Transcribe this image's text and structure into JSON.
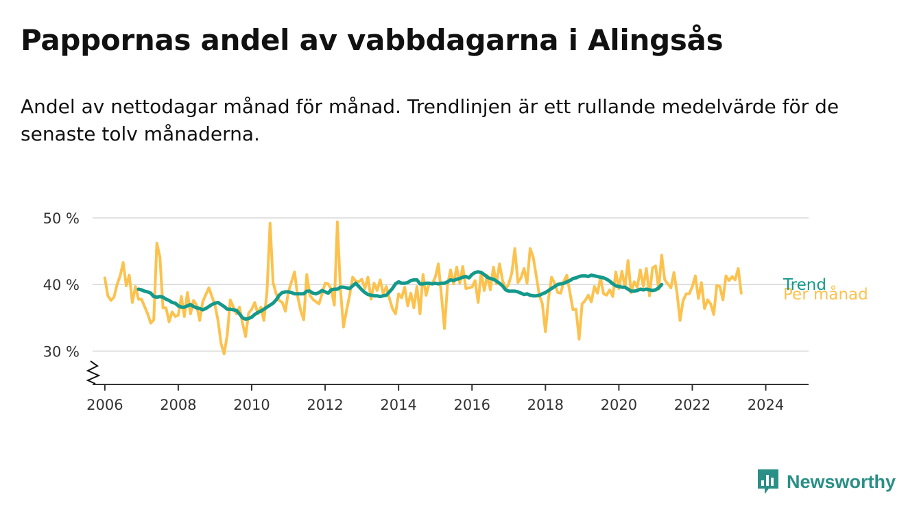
{
  "title": "Pappornas andel av vabbdagarna i Alingsås",
  "subtitle": "Andel av nettodagar månad för månad. Trendlinjen är ett rullande medelvärde för de senaste tolv månaderna.",
  "brand": {
    "name": "Newsworthy",
    "icon": "newsworthy-logo-icon"
  },
  "colors": {
    "monthly": "#fcc24e",
    "trend": "#14998b",
    "grid": "#d9d9d9",
    "axis": "#333333"
  },
  "chart_data": {
    "type": "line",
    "title": "Pappornas andel av vabbdagarna i Alingsås",
    "xlabel": "",
    "ylabel": "",
    "x_ticks": [
      "2006",
      "2008",
      "2010",
      "2012",
      "2014",
      "2016",
      "2018",
      "2020",
      "2022",
      "2024"
    ],
    "y_ticks": [
      "30 %",
      "40 %",
      "50 %"
    ],
    "xlim": [
      "2005-09",
      "2025-03"
    ],
    "ylim": [
      25,
      50
    ],
    "y_axis_broken": true,
    "grid": true,
    "series": [
      {
        "name": "Per månad",
        "x_start": "2006-01",
        "step": "month",
        "values": [
          41,
          38.3,
          37.6,
          38.1,
          40,
          41.3,
          43.3,
          39.8,
          41.4,
          37.3,
          39.7,
          37.8,
          37.8,
          36.7,
          35.6,
          34.2,
          34.7,
          46.2,
          44.1,
          36.5,
          36.5,
          34.4,
          35.9,
          35.2,
          35.4,
          38.2,
          35.2,
          38.8,
          35.6,
          37.6,
          36.9,
          34.6,
          37.4,
          38.5,
          39.5,
          38.2,
          36.9,
          34.6,
          31.1,
          29.6,
          32.4,
          37.7,
          36.6,
          35.6,
          36.6,
          34.2,
          32.2,
          35.7,
          36.3,
          37.3,
          35.6,
          36.6,
          34.6,
          38.9,
          49.2,
          40.3,
          38.6,
          37.6,
          37.3,
          36,
          38.9,
          40.4,
          41.9,
          38.3,
          36.1,
          34.7,
          41.5,
          38.4,
          37.8,
          37.4,
          37.1,
          38.6,
          40.2,
          40.1,
          39.3,
          36.9,
          49.4,
          39.3,
          33.6,
          36.1,
          38.4,
          41.1,
          40.5,
          40.4,
          40.8,
          39.4,
          41.1,
          37.8,
          40.2,
          39.1,
          40.7,
          38.6,
          39.7,
          37.9,
          36.4,
          35.6,
          38.6,
          38,
          39.6,
          36.8,
          38.7,
          36.5,
          39.7,
          35.6,
          41.5,
          38.4,
          40.2,
          40.1,
          41.1,
          43.1,
          38.4,
          33.4,
          39.9,
          42.2,
          40.1,
          42.6,
          40.2,
          42.7,
          39.4,
          39.5,
          39.6,
          40.6,
          37.3,
          41.9,
          39.1,
          41.4,
          39.2,
          42.6,
          40.1,
          43.1,
          40.6,
          39.3,
          40.1,
          41.7,
          45.4,
          40.3,
          41,
          42.4,
          40.2,
          45.4,
          44.1,
          41.3,
          38.4,
          37.1,
          32.9,
          37.9,
          41.1,
          40.2,
          38.8,
          38.7,
          40.5,
          41.4,
          38.8,
          36.2,
          36.3,
          31.8,
          37.1,
          37.6,
          38.4,
          37.4,
          39.7,
          38.7,
          41,
          38.6,
          38.4,
          39.2,
          38.2,
          41.9,
          39.4,
          42,
          39.6,
          43.6,
          38.8,
          40.4,
          39.6,
          42.2,
          39.7,
          42.4,
          38.3,
          42.5,
          42.8,
          39.3,
          44.4,
          40.7,
          40.1,
          39.5,
          41.8,
          38.7,
          34.6,
          37.6,
          38.6,
          38.6,
          39.7,
          41.3,
          37.9,
          40.3,
          36.4,
          37.7,
          37.1,
          35.5,
          39.9,
          39.7,
          37.7,
          41.3,
          40.6,
          41.2,
          40.7,
          42.4,
          38.7
        ]
      },
      {
        "name": "Trend",
        "x_start": "2006-12",
        "step": "month",
        "values": [
          39.3,
          39.2,
          39,
          38.9,
          38.7,
          38.2,
          38.1,
          38.2,
          38.1,
          37.8,
          37.6,
          37.3,
          37.2,
          36.8,
          36.6,
          36.6,
          36.8,
          37,
          36.7,
          36.5,
          36.4,
          36.2,
          36.4,
          36.7,
          37,
          37.2,
          37.3,
          37,
          36.7,
          36.3,
          36.3,
          36.2,
          36.1,
          35.6,
          35,
          34.8,
          34.9,
          35.1,
          35.5,
          35.8,
          36,
          36.3,
          36.6,
          36.9,
          37.2,
          37.7,
          38.4,
          38.8,
          38.9,
          38.9,
          38.8,
          38.6,
          38.6,
          38.6,
          38.6,
          39,
          39,
          38.7,
          38.6,
          38.8,
          39.1,
          38.9,
          38.7,
          39.2,
          39.3,
          39.3,
          39.6,
          39.6,
          39.5,
          39.4,
          39.8,
          40.2,
          39.7,
          39.2,
          38.8,
          38.5,
          38.4,
          38.3,
          38.3,
          38.2,
          38.3,
          38.4,
          38.9,
          39.4,
          40.1,
          40.4,
          40.2,
          40.2,
          40.3,
          40.6,
          40.7,
          40.7,
          40.1,
          40.1,
          40.2,
          40.2,
          40.1,
          40.2,
          40.1,
          40.2,
          40.2,
          40.4,
          40.7,
          40.6,
          40.8,
          40.9,
          41.1,
          41.2,
          41,
          41.5,
          41.8,
          41.9,
          41.8,
          41.5,
          41.1,
          40.9,
          40.8,
          40.5,
          40.2,
          39.8,
          39.2,
          39,
          39,
          39,
          38.9,
          38.7,
          38.5,
          38.6,
          38.4,
          38.3,
          38.3,
          38.4,
          38.6,
          38.8,
          39.1,
          39.4,
          39.7,
          40,
          40.1,
          40.2,
          40.4,
          40.6,
          40.9,
          41,
          41.2,
          41.3,
          41.3,
          41.2,
          41.4,
          41.3,
          41.2,
          41.1,
          41,
          40.8,
          40.5,
          40.1,
          39.8,
          39.7,
          39.6,
          39.6,
          39.3,
          39,
          39,
          39.1,
          39.3,
          39.2,
          39.3,
          39.2,
          39.1,
          39.2,
          39.5,
          40
        ]
      }
    ]
  }
}
